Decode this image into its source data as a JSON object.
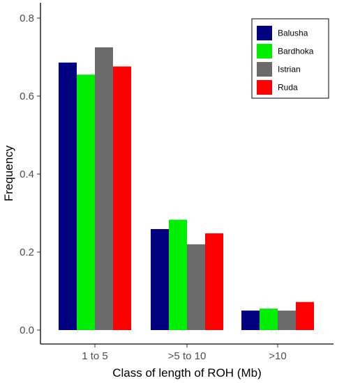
{
  "chart_data": {
    "type": "bar",
    "title": "",
    "xlabel": "Class of length of ROH (Mb)",
    "ylabel": "Frequency",
    "categories": [
      "1 to 5",
      ">5 to 10",
      ">10"
    ],
    "series": [
      {
        "name": "Balusha",
        "color": "#000080",
        "values": [
          0.686,
          0.259,
          0.05
        ]
      },
      {
        "name": "Bardhoka",
        "color": "#00ee00",
        "values": [
          0.655,
          0.283,
          0.055
        ]
      },
      {
        "name": "Istrian",
        "color": "#6b6b6b",
        "values": [
          0.725,
          0.22,
          0.05
        ]
      },
      {
        "name": "Ruda",
        "color": "#ff0000",
        "values": [
          0.676,
          0.248,
          0.072
        ]
      }
    ],
    "ylim": [
      0,
      0.85
    ],
    "yticks": [
      0.0,
      0.2,
      0.4,
      0.6,
      0.8
    ],
    "ytick_labels": [
      "0.0",
      "0.2",
      "0.4",
      "0.6",
      "0.8"
    ],
    "grid": false,
    "legend": {
      "position": "top-right",
      "boxed": true
    }
  }
}
